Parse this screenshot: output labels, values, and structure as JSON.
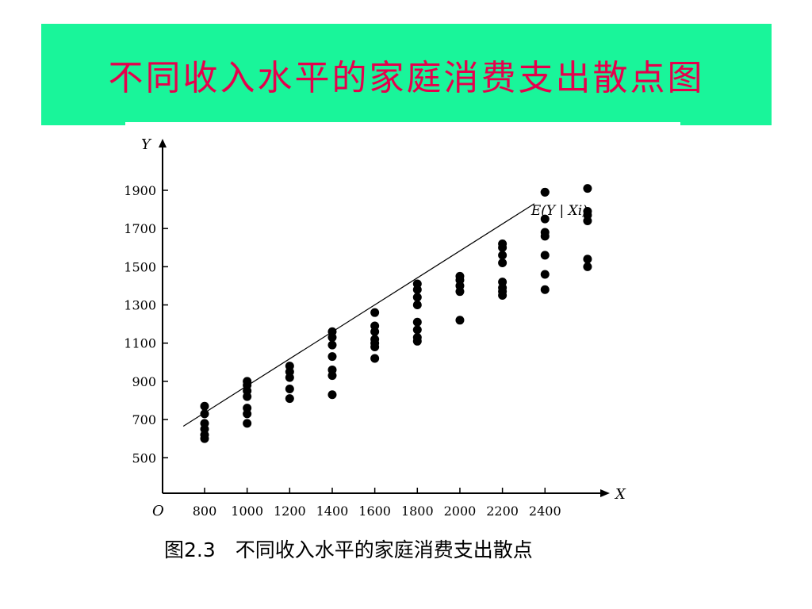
{
  "slide": {
    "title": "不同收入水平的家庭消费支出散点图",
    "caption": "图2.3　不同收入水平的家庭消费支出散点",
    "banner_color": "#19f59a",
    "title_color": "#e6004c"
  },
  "chart_data": {
    "type": "scatter",
    "title": "",
    "xlabel": "X",
    "ylabel": "Y",
    "origin_label": "O",
    "x_ticks": [
      800,
      1000,
      1200,
      1400,
      1600,
      1800,
      2000,
      2200,
      2400
    ],
    "y_ticks": [
      500,
      700,
      900,
      1100,
      1300,
      1500,
      1700,
      1900
    ],
    "xlim": [
      700,
      2500
    ],
    "ylim": [
      420,
      2000
    ],
    "grid": false,
    "points": [
      {
        "x": 800,
        "y": 600
      },
      {
        "x": 800,
        "y": 620
      },
      {
        "x": 800,
        "y": 650
      },
      {
        "x": 800,
        "y": 680
      },
      {
        "x": 800,
        "y": 730
      },
      {
        "x": 800,
        "y": 770
      },
      {
        "x": 1000,
        "y": 680
      },
      {
        "x": 1000,
        "y": 730
      },
      {
        "x": 1000,
        "y": 760
      },
      {
        "x": 1000,
        "y": 820
      },
      {
        "x": 1000,
        "y": 850
      },
      {
        "x": 1000,
        "y": 880
      },
      {
        "x": 1000,
        "y": 900
      },
      {
        "x": 1200,
        "y": 810
      },
      {
        "x": 1200,
        "y": 860
      },
      {
        "x": 1200,
        "y": 920
      },
      {
        "x": 1200,
        "y": 950
      },
      {
        "x": 1200,
        "y": 980
      },
      {
        "x": 1400,
        "y": 830
      },
      {
        "x": 1400,
        "y": 930
      },
      {
        "x": 1400,
        "y": 960
      },
      {
        "x": 1400,
        "y": 1030
      },
      {
        "x": 1400,
        "y": 1090
      },
      {
        "x": 1400,
        "y": 1130
      },
      {
        "x": 1400,
        "y": 1160
      },
      {
        "x": 1600,
        "y": 1020
      },
      {
        "x": 1600,
        "y": 1080
      },
      {
        "x": 1600,
        "y": 1100
      },
      {
        "x": 1600,
        "y": 1120
      },
      {
        "x": 1600,
        "y": 1160
      },
      {
        "x": 1600,
        "y": 1190
      },
      {
        "x": 1600,
        "y": 1260
      },
      {
        "x": 1800,
        "y": 1110
      },
      {
        "x": 1800,
        "y": 1130
      },
      {
        "x": 1800,
        "y": 1170
      },
      {
        "x": 1800,
        "y": 1210
      },
      {
        "x": 1800,
        "y": 1300
      },
      {
        "x": 1800,
        "y": 1340
      },
      {
        "x": 1800,
        "y": 1380
      },
      {
        "x": 1800,
        "y": 1410
      },
      {
        "x": 2000,
        "y": 1220
      },
      {
        "x": 2000,
        "y": 1370
      },
      {
        "x": 2000,
        "y": 1400
      },
      {
        "x": 2000,
        "y": 1430
      },
      {
        "x": 2000,
        "y": 1450
      },
      {
        "x": 2200,
        "y": 1350
      },
      {
        "x": 2200,
        "y": 1370
      },
      {
        "x": 2200,
        "y": 1390
      },
      {
        "x": 2200,
        "y": 1420
      },
      {
        "x": 2200,
        "y": 1520
      },
      {
        "x": 2200,
        "y": 1560
      },
      {
        "x": 2200,
        "y": 1600
      },
      {
        "x": 2200,
        "y": 1620
      },
      {
        "x": 2400,
        "y": 1380
      },
      {
        "x": 2400,
        "y": 1460
      },
      {
        "x": 2400,
        "y": 1560
      },
      {
        "x": 2400,
        "y": 1660
      },
      {
        "x": 2400,
        "y": 1680
      },
      {
        "x": 2400,
        "y": 1750
      },
      {
        "x": 2400,
        "y": 1890
      },
      {
        "x": 2400,
        "y": 1890
      },
      {
        "x": 2600,
        "y": 1500
      },
      {
        "x": 2600,
        "y": 1540
      },
      {
        "x": 2600,
        "y": 1740
      },
      {
        "x": 2600,
        "y": 1770
      },
      {
        "x": 2600,
        "y": 1790
      },
      {
        "x": 2600,
        "y": 1910
      }
    ],
    "regression_line": {
      "label": "E(Y | Xi)",
      "from": {
        "x": 700,
        "y": 665
      },
      "to": {
        "x": 2350,
        "y": 1830
      }
    }
  }
}
